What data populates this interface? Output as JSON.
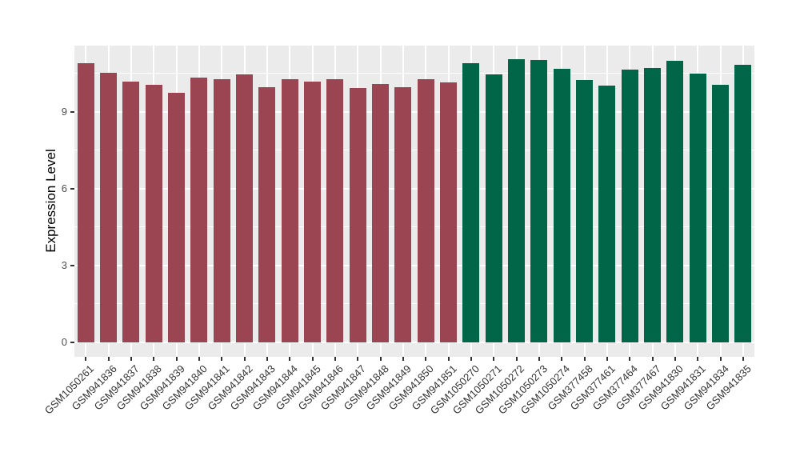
{
  "figure": {
    "ylabel": "Expression Level"
  },
  "chart_data": {
    "type": "bar",
    "title": "",
    "xlabel": "",
    "ylabel": "Expression Level",
    "legend": "none",
    "grid": true,
    "panel_bg": "#EBEBEB",
    "grid_color": "#FFFFFF",
    "ylim_display": [
      -0.56,
      11.58
    ],
    "yticks": [
      0,
      3,
      6,
      9
    ],
    "yticks_minor": [
      1.5,
      4.5,
      7.5,
      10.5
    ],
    "group_colors": [
      "#9B4452",
      "#006647"
    ],
    "categories": [
      "GSM1050261",
      "GSM941836",
      "GSM941837",
      "GSM941838",
      "GSM941839",
      "GSM941840",
      "GSM941841",
      "GSM941842",
      "GSM941843",
      "GSM941844",
      "GSM941845",
      "GSM941846",
      "GSM941847",
      "GSM941848",
      "GSM941849",
      "GSM941850",
      "GSM941851",
      "GSM1050270",
      "GSM1050271",
      "GSM1050272",
      "GSM1050273",
      "GSM1050274",
      "GSM377458",
      "GSM377461",
      "GSM377464",
      "GSM377467",
      "GSM941830",
      "GSM941831",
      "GSM941834",
      "GSM941835"
    ],
    "values": [
      10.88,
      10.53,
      10.17,
      10.06,
      9.75,
      10.32,
      10.28,
      10.46,
      9.97,
      10.27,
      10.17,
      10.28,
      9.92,
      10.07,
      9.97,
      10.28,
      10.15,
      10.88,
      10.46,
      11.06,
      11.01,
      10.67,
      10.25,
      10.02,
      10.63,
      10.71,
      10.98,
      10.49,
      10.06,
      10.82
    ],
    "bar_group": [
      0,
      0,
      0,
      0,
      0,
      0,
      0,
      0,
      0,
      0,
      0,
      0,
      0,
      0,
      0,
      0,
      0,
      1,
      1,
      1,
      1,
      1,
      1,
      1,
      1,
      1,
      1,
      1,
      1,
      1
    ]
  }
}
